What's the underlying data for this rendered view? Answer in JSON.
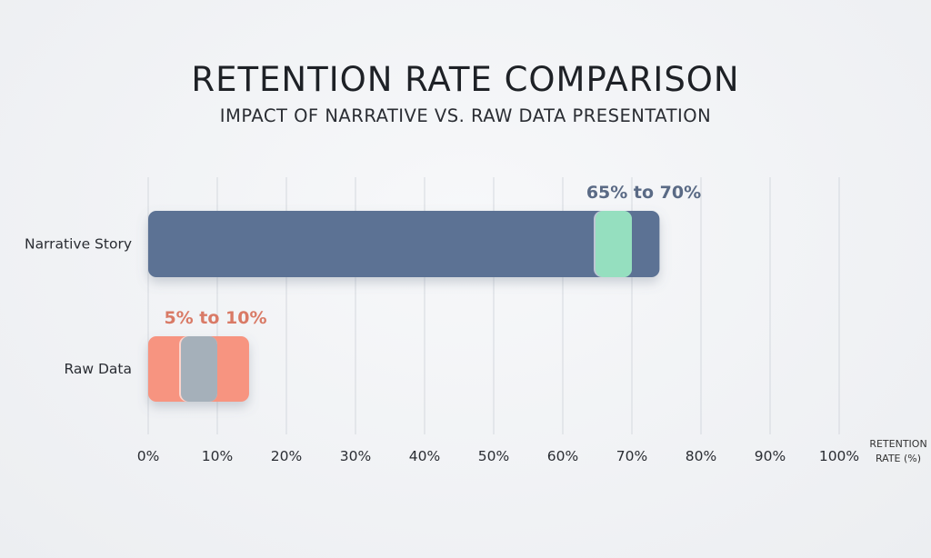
{
  "chart_data": {
    "type": "bar",
    "orientation": "horizontal",
    "title": "RETENTION RATE COMPARISON",
    "subtitle": "IMPACT OF NARRATIVE VS. RAW DATA PRESENTATION",
    "xlabel": "RETENTION RATE (%)",
    "xlim": [
      0,
      100
    ],
    "x_ticks": [
      "0%",
      "10%",
      "20%",
      "30%",
      "40%",
      "50%",
      "60%",
      "70%",
      "80%",
      "90%",
      "100%"
    ],
    "grid": "vertical",
    "categories": [
      "Narrative Story",
      "Raw Data"
    ],
    "bars": [
      {
        "category": "Narrative Story",
        "value": 74,
        "highlight_range": [
          65,
          70
        ],
        "annotation": "65% to 70%",
        "color": "#5b7294",
        "highlight_color": "#95dfbf",
        "label_color": "#5a6a85"
      },
      {
        "category": "Raw Data",
        "value": 14.6,
        "highlight_range": [
          5,
          10
        ],
        "annotation": "5% to 10%",
        "color": "#f79480",
        "highlight_color": "#a5b0ba",
        "label_color": "#d97a66"
      }
    ]
  }
}
